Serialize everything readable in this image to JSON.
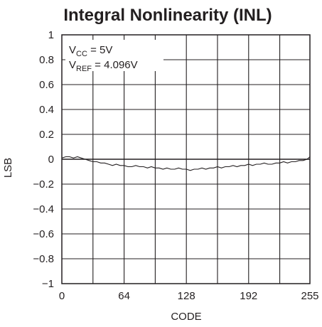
{
  "chart_data": {
    "type": "line",
    "title": "Integral Nonlinearity (INL)",
    "xlabel": "CODE",
    "ylabel": "LSB",
    "xlim": [
      0,
      255
    ],
    "ylim": [
      -1,
      1
    ],
    "x_ticks": [
      0,
      64,
      128,
      192,
      255
    ],
    "x_tick_labels": [
      "0",
      "64",
      "128",
      "192",
      "255"
    ],
    "y_ticks": [
      1,
      0.8,
      0.6,
      0.4,
      0.2,
      0,
      -0.2,
      -0.4,
      -0.6,
      -0.8,
      -1
    ],
    "y_tick_labels": [
      "1",
      "0.8",
      "0.6",
      "0.4",
      "0.2",
      "0",
      "−0.2",
      "−0.4",
      "−0.6",
      "−0.8",
      "−1"
    ],
    "grid": true,
    "annotations": [
      {
        "base": "V",
        "sub": "CC",
        "rest": " = 5V"
      },
      {
        "base": "V",
        "sub": "REF",
        "rest": " = 4.096V"
      }
    ],
    "series": [
      {
        "color": "#231f20",
        "x": [
          0,
          4,
          8,
          12,
          16,
          20,
          24,
          28,
          32,
          36,
          40,
          44,
          48,
          52,
          56,
          60,
          64,
          68,
          72,
          76,
          80,
          84,
          88,
          92,
          96,
          100,
          104,
          108,
          112,
          116,
          120,
          124,
          128,
          132,
          136,
          140,
          144,
          148,
          152,
          156,
          160,
          164,
          168,
          172,
          176,
          180,
          184,
          188,
          192,
          196,
          200,
          204,
          208,
          212,
          216,
          220,
          224,
          228,
          232,
          236,
          240,
          244,
          248,
          252,
          255
        ],
        "y": [
          0.01,
          0.02,
          0.02,
          0.01,
          0.02,
          0.01,
          0.0,
          -0.01,
          -0.02,
          -0.02,
          -0.03,
          -0.03,
          -0.04,
          -0.05,
          -0.04,
          -0.05,
          -0.05,
          -0.06,
          -0.06,
          -0.05,
          -0.06,
          -0.06,
          -0.07,
          -0.06,
          -0.07,
          -0.07,
          -0.08,
          -0.07,
          -0.08,
          -0.08,
          -0.07,
          -0.08,
          -0.08,
          -0.09,
          -0.08,
          -0.08,
          -0.07,
          -0.08,
          -0.07,
          -0.07,
          -0.06,
          -0.07,
          -0.06,
          -0.06,
          -0.05,
          -0.06,
          -0.05,
          -0.05,
          -0.04,
          -0.05,
          -0.04,
          -0.04,
          -0.03,
          -0.04,
          -0.04,
          -0.03,
          -0.03,
          -0.02,
          -0.03,
          -0.02,
          -0.02,
          -0.01,
          -0.01,
          0.0,
          0.02
        ]
      }
    ]
  }
}
